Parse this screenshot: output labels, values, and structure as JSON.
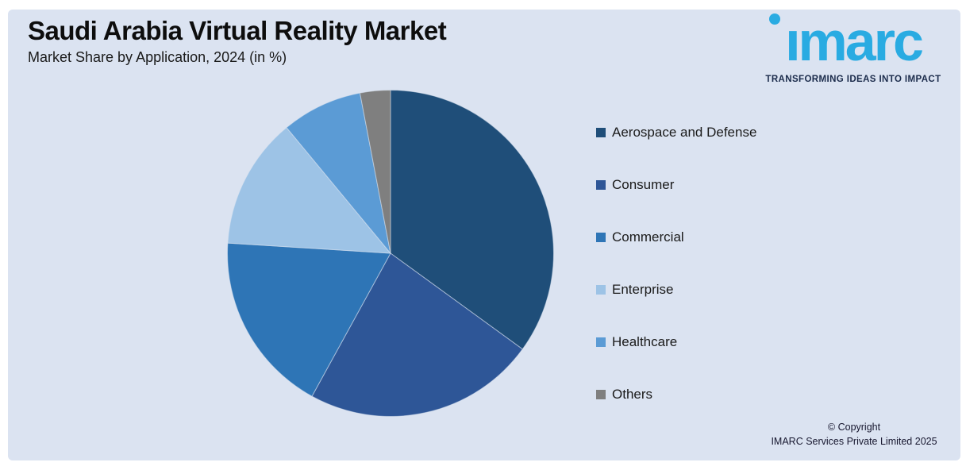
{
  "header": {
    "title": "Saudi Arabia Virtual Reality Market",
    "subtitle": "Market Share by Application, 2024 (in %)"
  },
  "logo": {
    "wordmark": "imarc",
    "tagline": "TRANSFORMING IDEAS INTO IMPACT",
    "brand_color": "#29abe2",
    "tagline_color": "#1b2b4b"
  },
  "chart_data": {
    "type": "pie",
    "title": "Saudi Arabia Virtual Reality Market",
    "subtitle": "Market Share by Application, 2024 (in %)",
    "unit": "%",
    "start_angle_deg": 0,
    "direction": "clockwise",
    "legend_position": "right",
    "data_labels_shown": false,
    "slices": [
      {
        "label": "Aerospace and Defense",
        "value": 35,
        "color": "#1f4e79"
      },
      {
        "label": "Consumer",
        "value": 23,
        "color": "#2e5697"
      },
      {
        "label": "Commercial",
        "value": 18,
        "color": "#2e75b6"
      },
      {
        "label": "Enterprise",
        "value": 13,
        "color": "#9dc3e6"
      },
      {
        "label": "Healthcare",
        "value": 8,
        "color": "#5b9bd5"
      },
      {
        "label": "Others",
        "value": 3,
        "color": "#7f7f7f"
      }
    ]
  },
  "footer": {
    "copyright_line1": "© Copyright",
    "copyright_line2": "IMARC Services Private Limited 2025"
  },
  "colors": {
    "page_frame": "#ffffff",
    "panel_background": "#dbe3f1",
    "title_text": "#0d0d0d",
    "body_text": "#1a1a1a"
  }
}
